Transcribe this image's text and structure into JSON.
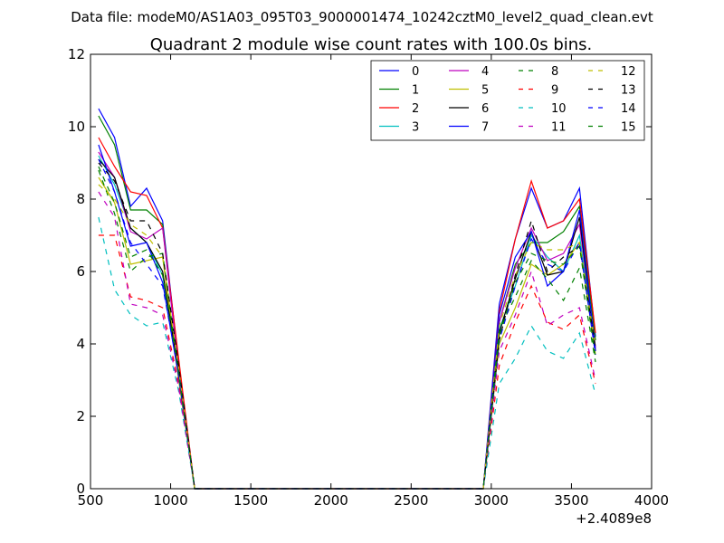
{
  "figure": {
    "suptitle": "Data file: modeM0/AS1A03_095T03_9000001474_10242cztM0_level2_quad_clean.evt",
    "title": "Quadrant 2 module wise count rates with 100.0s bins.",
    "offset_label": "+2.4089e8"
  },
  "chart_data": {
    "type": "line",
    "title": "Quadrant 2 module wise count rates with 100.0s bins.",
    "xlabel": "",
    "ylabel": "",
    "xlim": [
      500,
      4000
    ],
    "ylim": [
      0,
      12
    ],
    "x_offset": 240890000,
    "xticks": [
      500,
      1000,
      1500,
      2000,
      2500,
      3000,
      3500,
      4000
    ],
    "yticks": [
      0,
      2,
      4,
      6,
      8,
      10,
      12
    ],
    "grid": false,
    "legend": "top-right",
    "x": [
      550,
      650,
      750,
      850,
      950,
      1050,
      1150,
      1250,
      1350,
      1450,
      1550,
      1650,
      1750,
      1850,
      1950,
      2050,
      2150,
      2250,
      2350,
      2450,
      2550,
      2650,
      2750,
      2850,
      2950,
      3050,
      3150,
      3250,
      3350,
      3450,
      3550,
      3650
    ],
    "series": [
      {
        "name": "0",
        "color": "#0000ff",
        "dash": "solid",
        "values": [
          10.5,
          9.7,
          7.8,
          8.3,
          7.4,
          3.5,
          0,
          0,
          0,
          0,
          0,
          0,
          0,
          0,
          0,
          0,
          0,
          0,
          0,
          0,
          0,
          0,
          0,
          0,
          0,
          5.1,
          6.9,
          8.3,
          7.2,
          7.4,
          8.3,
          4.2
        ]
      },
      {
        "name": "1",
        "color": "#008000",
        "dash": "solid",
        "values": [
          10.3,
          9.5,
          7.7,
          7.7,
          7.3,
          3.4,
          0,
          0,
          0,
          0,
          0,
          0,
          0,
          0,
          0,
          0,
          0,
          0,
          0,
          0,
          0,
          0,
          0,
          0,
          0,
          4.6,
          6.2,
          6.8,
          6.8,
          7.1,
          7.8,
          4.1
        ]
      },
      {
        "name": "2",
        "color": "#ff0000",
        "dash": "solid",
        "values": [
          9.7,
          8.9,
          8.2,
          8.1,
          7.2,
          3.6,
          0,
          0,
          0,
          0,
          0,
          0,
          0,
          0,
          0,
          0,
          0,
          0,
          0,
          0,
          0,
          0,
          0,
          0,
          0,
          4.9,
          6.9,
          8.5,
          7.2,
          7.4,
          8.0,
          4.3
        ]
      },
      {
        "name": "3",
        "color": "#00bfbf",
        "dash": "solid",
        "values": [
          9.2,
          8.4,
          7.2,
          6.8,
          5.9,
          3.2,
          0,
          0,
          0,
          0,
          0,
          0,
          0,
          0,
          0,
          0,
          0,
          0,
          0,
          0,
          0,
          0,
          0,
          0,
          0,
          4.4,
          5.6,
          7.0,
          6.4,
          6.0,
          7.0,
          3.9
        ]
      },
      {
        "name": "4",
        "color": "#bf00bf",
        "dash": "solid",
        "values": [
          9.3,
          8.6,
          7.1,
          6.9,
          7.2,
          3.3,
          0,
          0,
          0,
          0,
          0,
          0,
          0,
          0,
          0,
          0,
          0,
          0,
          0,
          0,
          0,
          0,
          0,
          0,
          0,
          4.6,
          6.1,
          7.2,
          6.3,
          6.5,
          7.3,
          3.9
        ]
      },
      {
        "name": "5",
        "color": "#bfbf00",
        "dash": "solid",
        "values": [
          8.6,
          7.9,
          6.2,
          6.3,
          6.4,
          3.0,
          0,
          0,
          0,
          0,
          0,
          0,
          0,
          0,
          0,
          0,
          0,
          0,
          0,
          0,
          0,
          0,
          0,
          0,
          0,
          4.0,
          5.0,
          6.2,
          5.9,
          6.2,
          6.8,
          3.7
        ]
      },
      {
        "name": "6",
        "color": "#000000",
        "dash": "solid",
        "values": [
          9.1,
          8.6,
          7.2,
          6.8,
          6.0,
          3.2,
          0,
          0,
          0,
          0,
          0,
          0,
          0,
          0,
          0,
          0,
          0,
          0,
          0,
          0,
          0,
          0,
          0,
          0,
          0,
          4.3,
          5.8,
          7.1,
          5.9,
          6.0,
          7.5,
          3.8
        ]
      },
      {
        "name": "7",
        "color": "#0000ff",
        "dash": "solid",
        "values": [
          9.5,
          8.2,
          6.7,
          6.8,
          5.7,
          3.1,
          0,
          0,
          0,
          0,
          0,
          0,
          0,
          0,
          0,
          0,
          0,
          0,
          0,
          0,
          0,
          0,
          0,
          0,
          0,
          4.8,
          6.4,
          7.1,
          5.6,
          6.0,
          7.7,
          3.8
        ]
      },
      {
        "name": "8",
        "color": "#008000",
        "dash": "dashed",
        "values": [
          8.8,
          7.6,
          6.0,
          6.4,
          6.5,
          3.2,
          0,
          0,
          0,
          0,
          0,
          0,
          0,
          0,
          0,
          0,
          0,
          0,
          0,
          0,
          0,
          0,
          0,
          0,
          0,
          4.4,
          5.3,
          6.3,
          5.8,
          5.2,
          6.1,
          3.5
        ]
      },
      {
        "name": "9",
        "color": "#ff0000",
        "dash": "dashed",
        "values": [
          7.0,
          7.0,
          5.3,
          5.2,
          5.0,
          2.9,
          0,
          0,
          0,
          0,
          0,
          0,
          0,
          0,
          0,
          0,
          0,
          0,
          0,
          0,
          0,
          0,
          0,
          0,
          0,
          3.4,
          4.6,
          5.6,
          4.6,
          4.4,
          4.8,
          2.9
        ]
      },
      {
        "name": "10",
        "color": "#00bfbf",
        "dash": "dashed",
        "values": [
          7.5,
          5.5,
          4.8,
          4.5,
          4.6,
          2.7,
          0,
          0,
          0,
          0,
          0,
          0,
          0,
          0,
          0,
          0,
          0,
          0,
          0,
          0,
          0,
          0,
          0,
          0,
          0,
          2.9,
          3.6,
          4.5,
          3.8,
          3.6,
          4.3,
          2.6
        ]
      },
      {
        "name": "11",
        "color": "#bf00bf",
        "dash": "dashed",
        "values": [
          8.2,
          7.5,
          5.1,
          5.0,
          4.8,
          2.8,
          0,
          0,
          0,
          0,
          0,
          0,
          0,
          0,
          0,
          0,
          0,
          0,
          0,
          0,
          0,
          0,
          0,
          0,
          0,
          3.8,
          4.8,
          6.0,
          4.5,
          4.8,
          5.0,
          3.0
        ]
      },
      {
        "name": "12",
        "color": "#bfbf00",
        "dash": "dashed",
        "values": [
          8.4,
          8.0,
          7.3,
          7.0,
          6.4,
          3.3,
          0,
          0,
          0,
          0,
          0,
          0,
          0,
          0,
          0,
          0,
          0,
          0,
          0,
          0,
          0,
          0,
          0,
          0,
          0,
          4.5,
          5.9,
          6.8,
          6.6,
          6.6,
          6.8,
          3.9
        ]
      },
      {
        "name": "13",
        "color": "#000000",
        "dash": "dashed",
        "values": [
          9.0,
          8.5,
          7.4,
          7.4,
          6.5,
          3.4,
          0,
          0,
          0,
          0,
          0,
          0,
          0,
          0,
          0,
          0,
          0,
          0,
          0,
          0,
          0,
          0,
          0,
          0,
          0,
          4.1,
          5.9,
          7.4,
          6.0,
          6.4,
          6.7,
          3.9
        ]
      },
      {
        "name": "14",
        "color": "#0000ff",
        "dash": "dashed",
        "values": [
          9.1,
          8.2,
          6.8,
          6.2,
          5.6,
          3.2,
          0,
          0,
          0,
          0,
          0,
          0,
          0,
          0,
          0,
          0,
          0,
          0,
          0,
          0,
          0,
          0,
          0,
          0,
          0,
          4.1,
          5.6,
          6.9,
          6.2,
          6.0,
          6.8,
          3.7
        ]
      },
      {
        "name": "15",
        "color": "#008000",
        "dash": "dashed",
        "values": [
          8.9,
          7.9,
          6.4,
          6.6,
          5.9,
          3.2,
          0,
          0,
          0,
          0,
          0,
          0,
          0,
          0,
          0,
          0,
          0,
          0,
          0,
          0,
          0,
          0,
          0,
          0,
          0,
          4.2,
          5.7,
          6.5,
          6.3,
          6.2,
          6.7,
          3.6
        ]
      }
    ]
  }
}
